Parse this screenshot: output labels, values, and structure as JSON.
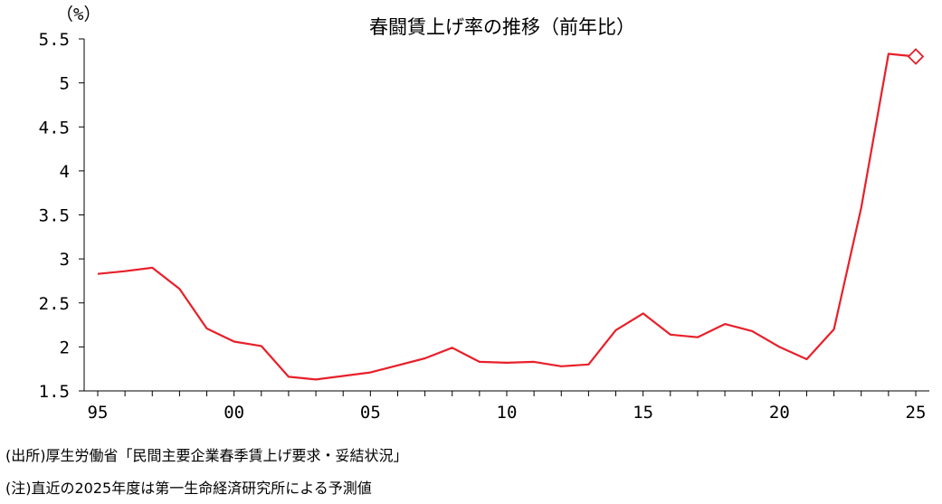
{
  "chart_data": {
    "type": "line",
    "title": "春闘賃上げ率の推移（前年比）",
    "ylabel": "（%）",
    "xlabel": "",
    "ylim": [
      1.5,
      5.5
    ],
    "xlim": [
      1995,
      2025
    ],
    "y_ticks": [
      "1.5",
      "2",
      "2.5",
      "3",
      "3.5",
      "4",
      "4.5",
      "5",
      "5.5"
    ],
    "y_tick_values": [
      1.5,
      2,
      2.5,
      3,
      3.5,
      4,
      4.5,
      5,
      5.5
    ],
    "x_tick_labels": [
      "95",
      "00",
      "05",
      "10",
      "15",
      "20",
      "25"
    ],
    "x_tick_values": [
      1995,
      2000,
      2005,
      2010,
      2015,
      2020,
      2025
    ],
    "grid": false,
    "line_color": "#e8202a",
    "series": [
      {
        "x": [
          1995,
          1996,
          1997,
          1998,
          1999,
          2000,
          2001,
          2002,
          2003,
          2004,
          2005,
          2006,
          2007,
          2008,
          2009,
          2010,
          2011,
          2012,
          2013,
          2014,
          2015,
          2016,
          2017,
          2018,
          2019,
          2020,
          2021,
          2022,
          2023,
          2024
        ],
        "y": [
          2.83,
          2.86,
          2.9,
          2.66,
          2.21,
          2.06,
          2.01,
          1.66,
          1.63,
          1.67,
          1.71,
          1.79,
          1.87,
          1.99,
          1.83,
          1.82,
          1.83,
          1.78,
          1.8,
          2.19,
          2.38,
          2.14,
          2.11,
          2.26,
          2.18,
          2.0,
          1.86,
          2.2,
          3.58,
          5.33
        ]
      }
    ],
    "forecast": {
      "x": 2025,
      "y": 5.3,
      "marker": "diamond"
    }
  },
  "notes": {
    "source": "(出所)厚生労働省「民間主要企業春季賃上げ要求・妥結状況」",
    "note": "(注)直近の2025年度は第一生命経済研究所による予測値"
  }
}
